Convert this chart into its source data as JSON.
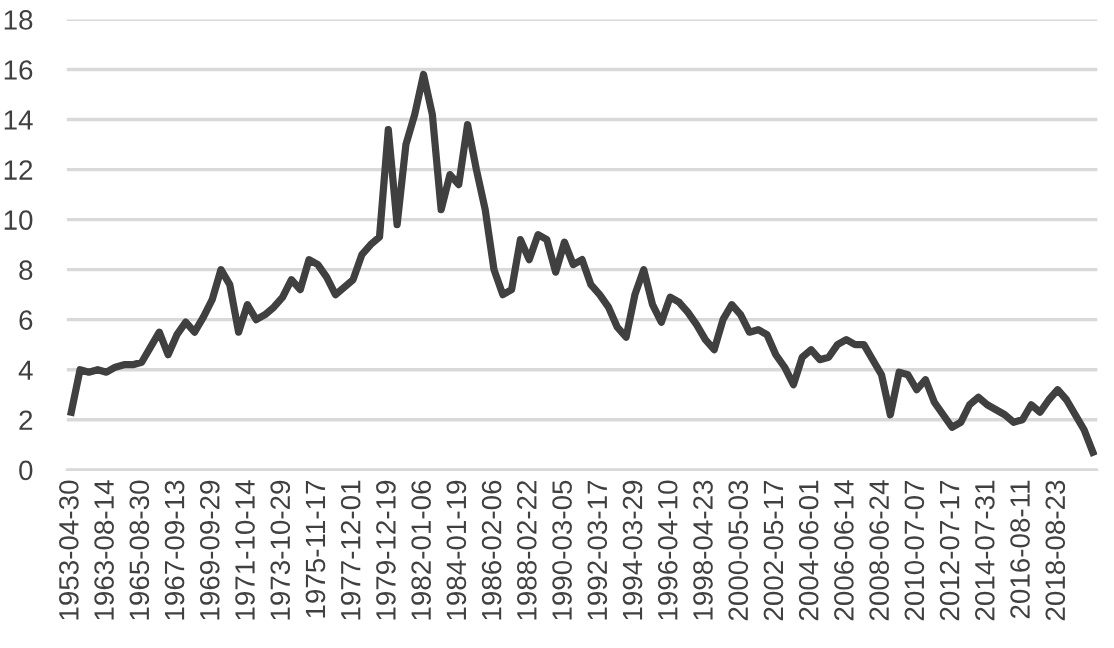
{
  "chart_data": {
    "type": "line",
    "categories": [
      "1953-04-30",
      null,
      null,
      null,
      "1963-08-14",
      null,
      null,
      null,
      "1965-08-30",
      null,
      null,
      null,
      "1967-09-13",
      null,
      null,
      null,
      "1969-09-29",
      null,
      null,
      null,
      "1971-10-14",
      null,
      null,
      null,
      "1973-10-29",
      null,
      null,
      null,
      "1975-11-17",
      null,
      null,
      null,
      "1977-12-01",
      null,
      null,
      null,
      "1979-12-19",
      null,
      null,
      null,
      "1982-01-06",
      null,
      null,
      null,
      "1984-01-19",
      null,
      null,
      null,
      "1986-02-06",
      null,
      null,
      null,
      "1988-02-22",
      null,
      null,
      null,
      "1990-03-05",
      null,
      null,
      null,
      "1992-03-17",
      null,
      null,
      null,
      "1994-03-29",
      null,
      null,
      null,
      "1996-04-10",
      null,
      null,
      null,
      "1998-04-23",
      null,
      null,
      null,
      "2000-05-03",
      null,
      null,
      null,
      "2002-05-17",
      null,
      null,
      null,
      "2004-06-01",
      null,
      null,
      null,
      "2006-06-14",
      null,
      null,
      null,
      "2008-06-24",
      null,
      null,
      null,
      "2010-07-07",
      null,
      null,
      null,
      "2012-07-17",
      null,
      null,
      null,
      "2014-07-31",
      null,
      null,
      null,
      "2016-08-11",
      null,
      null,
      null,
      "2018-08-23",
      null,
      null,
      null,
      null
    ],
    "series": [
      {
        "color": "#404040",
        "values": [
          2.3,
          4.0,
          3.9,
          4.0,
          3.9,
          4.1,
          4.2,
          4.2,
          4.3,
          4.9,
          5.5,
          4.6,
          5.4,
          5.9,
          5.5,
          6.1,
          6.8,
          8.0,
          7.4,
          5.5,
          6.6,
          6.0,
          6.2,
          6.5,
          6.9,
          7.6,
          7.2,
          8.4,
          8.2,
          7.7,
          7.0,
          7.3,
          7.6,
          8.6,
          9.0,
          9.3,
          13.6,
          9.8,
          13.0,
          14.2,
          15.8,
          14.2,
          10.4,
          11.8,
          11.4,
          13.8,
          12.0,
          10.4,
          8.0,
          7.0,
          7.2,
          9.2,
          8.4,
          9.4,
          9.2,
          7.9,
          9.1,
          8.2,
          8.4,
          7.4,
          7.0,
          6.5,
          5.7,
          5.3,
          7.0,
          8.0,
          6.6,
          5.9,
          6.9,
          6.7,
          6.3,
          5.8,
          5.2,
          4.8,
          6.0,
          6.6,
          6.2,
          5.5,
          5.6,
          5.4,
          4.6,
          4.1,
          3.4,
          4.5,
          4.8,
          4.4,
          4.5,
          5.0,
          5.2,
          5.0,
          5.0,
          4.4,
          3.8,
          2.2,
          3.9,
          3.8,
          3.2,
          3.6,
          2.7,
          2.2,
          1.7,
          1.9,
          2.6,
          2.9,
          2.6,
          2.4,
          2.2,
          1.9,
          2.0,
          2.6,
          2.3,
          2.8,
          3.2,
          2.8,
          2.2,
          1.6,
          0.7
        ]
      }
    ],
    "ylim": [
      0,
      18
    ],
    "yticks": [
      0,
      2,
      4,
      6,
      8,
      10,
      12,
      14,
      16,
      18
    ],
    "grid": "y",
    "line_style": "solid",
    "marker": "none"
  }
}
